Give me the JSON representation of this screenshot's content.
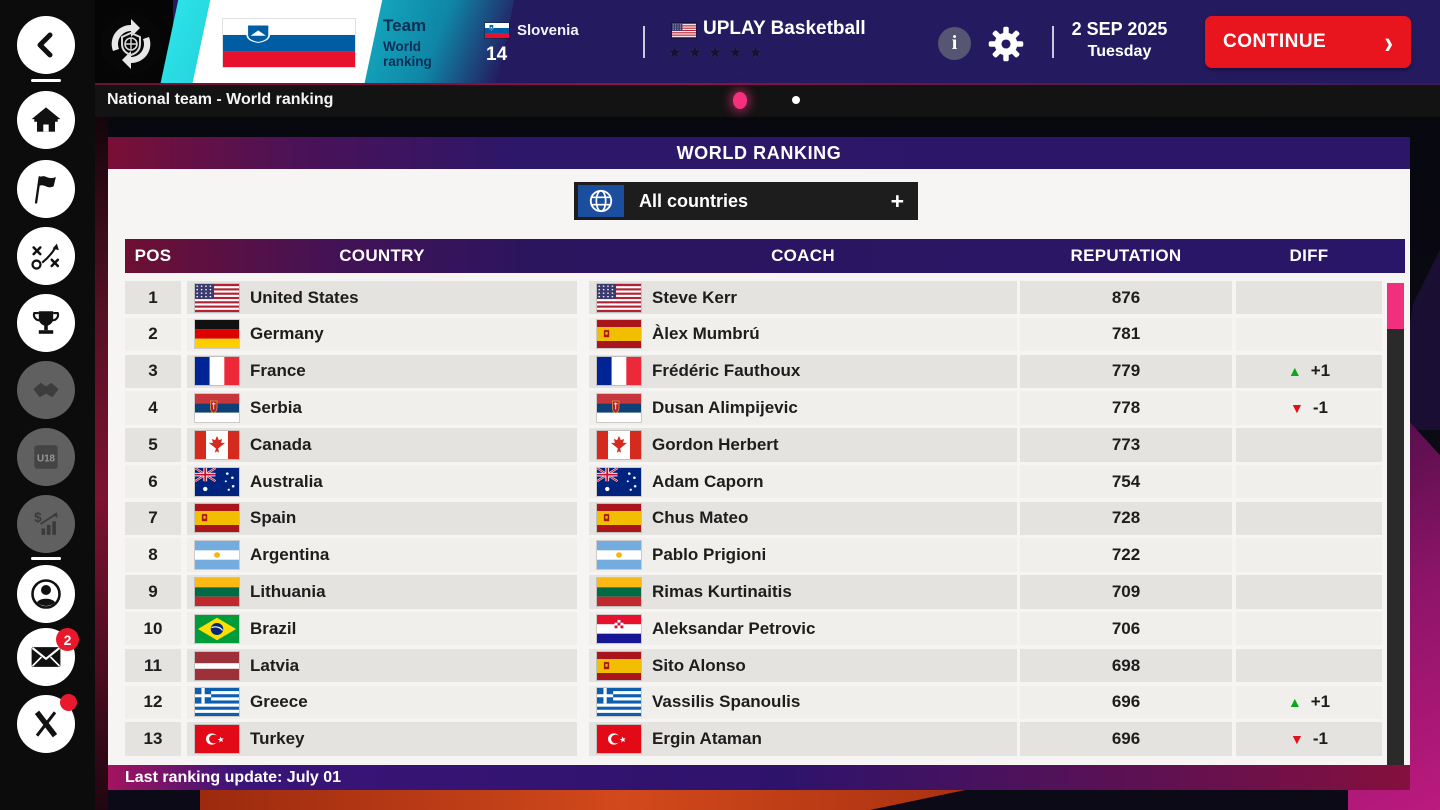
{
  "topbar": {
    "screen": {
      "primary": "Team",
      "secondary": "World ranking"
    },
    "team": {
      "name": "Slovenia",
      "flag": "si",
      "rank": "14"
    },
    "club": {
      "name": "UPLAY Basketball",
      "flag": "us",
      "stars": 5
    },
    "info_glyph": "i",
    "date": {
      "line1": "2 SEP 2025",
      "line2": "Tuesday"
    },
    "continue_label": "CONTINUE",
    "continue_glyph": "›"
  },
  "breadcrumb": {
    "label": "National team - World ranking"
  },
  "sidebar": {
    "mail_badge": "2"
  },
  "main": {
    "title": "WORLD RANKING",
    "filter": {
      "label": "All countries",
      "expand_glyph": "+"
    },
    "table": {
      "columns": [
        "POS",
        "COUNTRY",
        "COACH",
        "REPUTATION",
        "DIFF"
      ],
      "rows": [
        {
          "pos": "1",
          "country": "United States",
          "country_flag": "us",
          "coach": "Steve Kerr",
          "coach_flag": "us",
          "reputation": "876",
          "diff": "",
          "diff_dir": ""
        },
        {
          "pos": "2",
          "country": "Germany",
          "country_flag": "de",
          "coach": "Àlex Mumbrú",
          "coach_flag": "es",
          "reputation": "781",
          "diff": "",
          "diff_dir": ""
        },
        {
          "pos": "3",
          "country": "France",
          "country_flag": "fr",
          "coach": "Frédéric Fauthoux",
          "coach_flag": "fr",
          "reputation": "779",
          "diff": "+1",
          "diff_dir": "up"
        },
        {
          "pos": "4",
          "country": "Serbia",
          "country_flag": "rs",
          "coach": "Dusan Alimpijevic",
          "coach_flag": "rs",
          "reputation": "778",
          "diff": "-1",
          "diff_dir": "down"
        },
        {
          "pos": "5",
          "country": "Canada",
          "country_flag": "ca",
          "coach": "Gordon Herbert",
          "coach_flag": "ca",
          "reputation": "773",
          "diff": "",
          "diff_dir": ""
        },
        {
          "pos": "6",
          "country": "Australia",
          "country_flag": "au",
          "coach": "Adam Caporn",
          "coach_flag": "au",
          "reputation": "754",
          "diff": "",
          "diff_dir": ""
        },
        {
          "pos": "7",
          "country": "Spain",
          "country_flag": "es",
          "coach": "Chus Mateo",
          "coach_flag": "es",
          "reputation": "728",
          "diff": "",
          "diff_dir": ""
        },
        {
          "pos": "8",
          "country": "Argentina",
          "country_flag": "ar",
          "coach": "Pablo Prigioni",
          "coach_flag": "ar",
          "reputation": "722",
          "diff": "",
          "diff_dir": ""
        },
        {
          "pos": "9",
          "country": "Lithuania",
          "country_flag": "lt",
          "coach": "Rimas Kurtinaitis",
          "coach_flag": "lt",
          "reputation": "709",
          "diff": "",
          "diff_dir": ""
        },
        {
          "pos": "10",
          "country": "Brazil",
          "country_flag": "br",
          "coach": "Aleksandar Petrovic",
          "coach_flag": "hr",
          "reputation": "706",
          "diff": "",
          "diff_dir": ""
        },
        {
          "pos": "11",
          "country": "Latvia",
          "country_flag": "lv",
          "coach": "Sito Alonso",
          "coach_flag": "es",
          "reputation": "698",
          "diff": "",
          "diff_dir": ""
        },
        {
          "pos": "12",
          "country": "Greece",
          "country_flag": "gr",
          "coach": "Vassilis Spanoulis",
          "coach_flag": "gr",
          "reputation": "696",
          "diff": "+1",
          "diff_dir": "up"
        },
        {
          "pos": "13",
          "country": "Turkey",
          "country_flag": "tr",
          "coach": "Ergin Ataman",
          "coach_flag": "tr",
          "reputation": "696",
          "diff": "-1",
          "diff_dir": "down"
        }
      ]
    },
    "footer": {
      "label": "Last ranking update: July 01"
    }
  },
  "colors": {
    "accent_pink": "#f0307c",
    "continue_red": "#e8151f",
    "diff_up_green": "#0aa91d",
    "diff_down_red": "#e40f17",
    "header_gradient_left": "#6e0f33",
    "header_gradient_right": "#2a1668",
    "topbar_navy": "#241a5f",
    "teal_accent": "#17b8ca"
  }
}
